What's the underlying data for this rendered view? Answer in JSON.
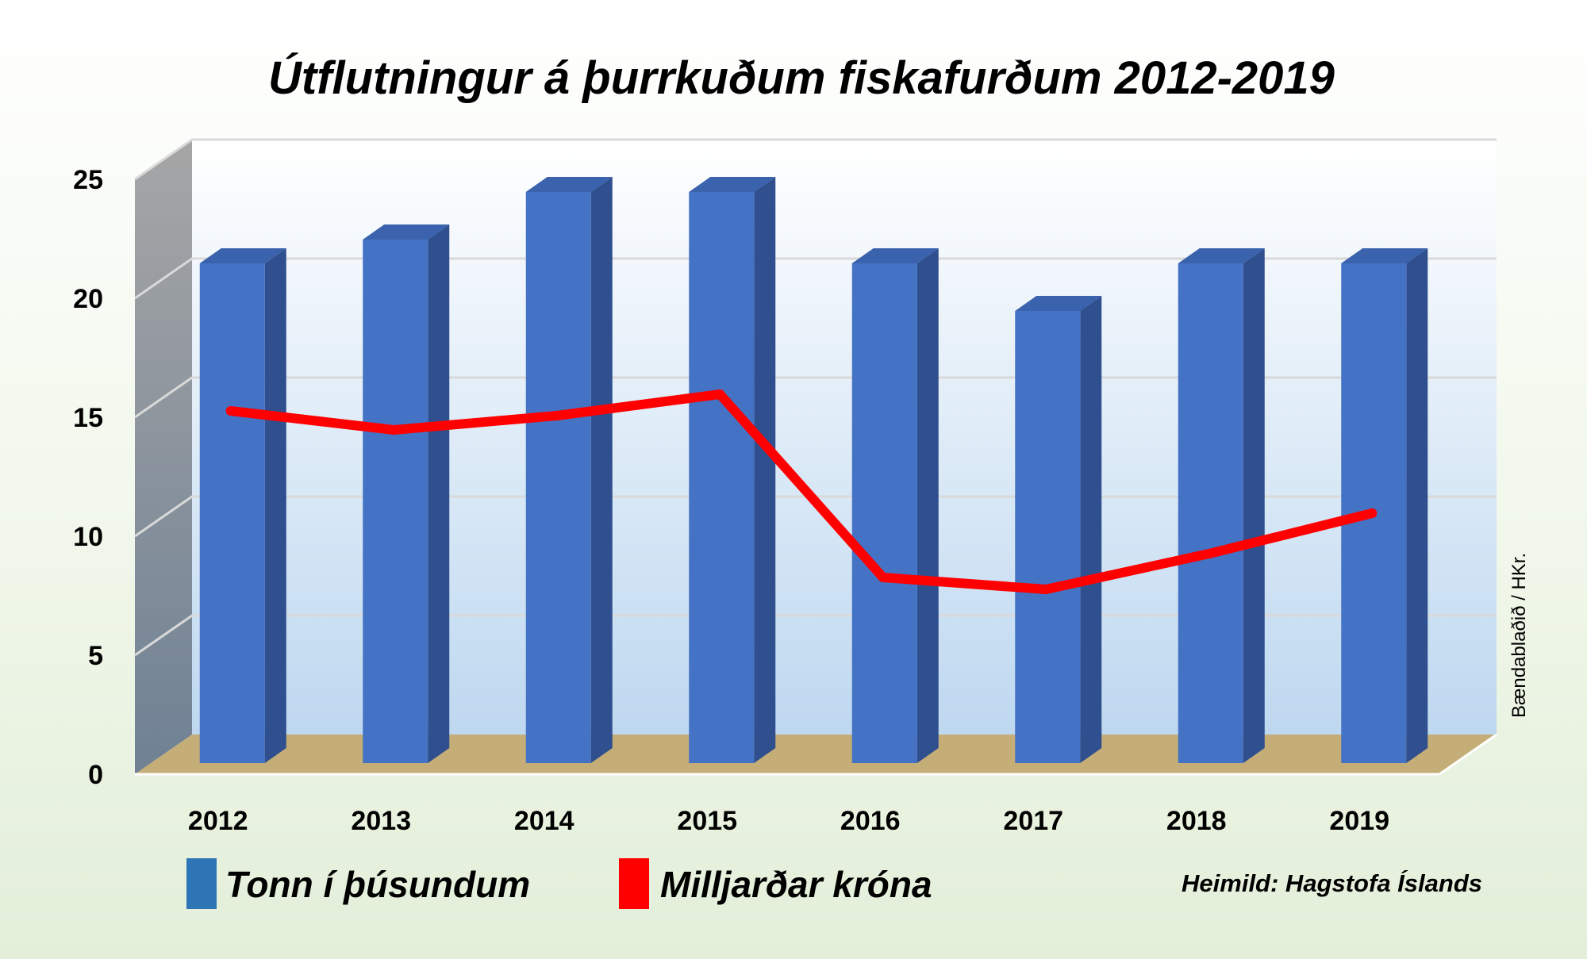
{
  "chart_data": {
    "type": "bar",
    "title": "Útflutningur á þurrkuðum fiskafurðum 2012-2019",
    "categories": [
      "2012",
      "2013",
      "2014",
      "2015",
      "2016",
      "2017",
      "2018",
      "2019"
    ],
    "series": [
      {
        "name": "Tonn í þúsundum",
        "type": "bar",
        "color": "#4472c4",
        "values": [
          21,
          22,
          24,
          24,
          21,
          19,
          21,
          21
        ]
      },
      {
        "name": "Milljarðar króna",
        "type": "line",
        "color": "#ff0000",
        "values": [
          14.6,
          13.8,
          14.4,
          15.3,
          7.6,
          7.1,
          8.6,
          10.3
        ]
      }
    ],
    "y_ticks": [
      "0",
      "5",
      "10",
      "15",
      "20",
      "25"
    ],
    "ylim": [
      0,
      25
    ],
    "grid": true,
    "legend_position": "bottom-left",
    "source": "Heimild: Hagstofa Íslands",
    "credit": "Bændablaðið / HKr."
  }
}
